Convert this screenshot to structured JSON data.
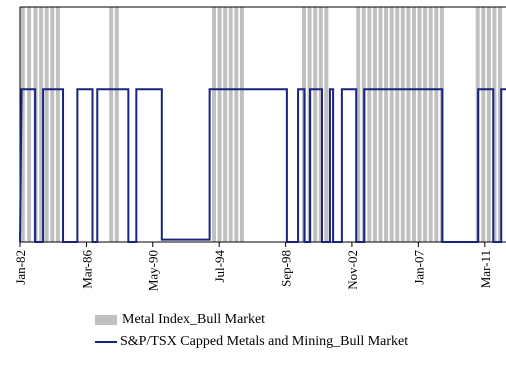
{
  "chart_data": {
    "type": "line",
    "xlabel": "",
    "ylabel": "",
    "x_tick_labels": [
      "Jan-82",
      "Mar-86",
      "May-90",
      "Jul-94",
      "Sep-98",
      "Nov-02",
      "Jan-07",
      "Mar-11"
    ],
    "x_tick_years": [
      1982.0,
      1986.17,
      1990.33,
      1994.5,
      1998.67,
      2002.83,
      2007.0,
      2011.17
    ],
    "xlim": [
      1982.0,
      2012.5
    ],
    "ylim": [
      0,
      1
    ],
    "grid": false,
    "legend_position": "bottom",
    "series": [
      {
        "name": "Metal Index_Bull Market",
        "kind": "shaded-bars",
        "color": "#c0c0c0",
        "value": 1,
        "bull_periods": [
          [
            1982.05,
            1982.3
          ],
          [
            1982.45,
            1982.7
          ],
          [
            1982.85,
            1983.1
          ],
          [
            1983.2,
            1983.45
          ],
          [
            1983.55,
            1983.8
          ],
          [
            1983.9,
            1984.15
          ],
          [
            1984.25,
            1984.5
          ],
          [
            1987.6,
            1987.85
          ],
          [
            1987.95,
            1988.2
          ],
          [
            1994.05,
            1994.3
          ],
          [
            1994.4,
            1994.65
          ],
          [
            1994.75,
            1995.0
          ],
          [
            1995.1,
            1995.35
          ],
          [
            1995.45,
            1995.7
          ],
          [
            1995.8,
            1996.05
          ],
          [
            1999.7,
            1999.95
          ],
          [
            2000.05,
            2000.3
          ],
          [
            2000.4,
            2000.65
          ],
          [
            2000.75,
            2001.0
          ],
          [
            2001.1,
            2001.35
          ],
          [
            2003.1,
            2003.35
          ],
          [
            2003.45,
            2003.7
          ],
          [
            2003.8,
            2004.05
          ],
          [
            2004.15,
            2004.4
          ],
          [
            2004.5,
            2004.75
          ],
          [
            2004.85,
            2005.1
          ],
          [
            2005.2,
            2005.45
          ],
          [
            2005.55,
            2005.8
          ],
          [
            2005.9,
            2006.15
          ],
          [
            2006.25,
            2006.5
          ],
          [
            2006.6,
            2006.85
          ],
          [
            2006.95,
            2007.2
          ],
          [
            2007.3,
            2007.55
          ],
          [
            2007.65,
            2007.9
          ],
          [
            2008.0,
            2008.25
          ],
          [
            2008.35,
            2008.6
          ],
          [
            2010.6,
            2010.85
          ],
          [
            2010.95,
            2011.2
          ],
          [
            2011.3,
            2011.55
          ],
          [
            2011.65,
            2011.9
          ],
          [
            2012.0,
            2012.25
          ]
        ]
      },
      {
        "name": "S&P/TSX Capped Metals and Mining_Bull Market",
        "kind": "step",
        "color": "#1a237e",
        "high": 0.65,
        "low": 0,
        "steps": [
          [
            1982.0,
            0
          ],
          [
            1982.1,
            0.65
          ],
          [
            1982.95,
            0.65
          ],
          [
            1982.95,
            0
          ],
          [
            1983.45,
            0
          ],
          [
            1983.45,
            0.65
          ],
          [
            1984.7,
            0.65
          ],
          [
            1984.7,
            0
          ],
          [
            1985.6,
            0
          ],
          [
            1985.6,
            0.65
          ],
          [
            1986.55,
            0.65
          ],
          [
            1986.55,
            0
          ],
          [
            1986.85,
            0
          ],
          [
            1986.85,
            0.65
          ],
          [
            1988.8,
            0.65
          ],
          [
            1988.8,
            0
          ],
          [
            1989.3,
            0
          ],
          [
            1989.3,
            0.65
          ],
          [
            1990.9,
            0.65
          ],
          [
            1990.9,
            0.01
          ],
          [
            1993.9,
            0.01
          ],
          [
            1993.9,
            0.65
          ],
          [
            1998.75,
            0.65
          ],
          [
            1998.75,
            0
          ],
          [
            1999.45,
            0
          ],
          [
            1999.45,
            0.65
          ],
          [
            1999.85,
            0.65
          ],
          [
            1999.85,
            0
          ],
          [
            2000.2,
            0
          ],
          [
            2000.2,
            0.65
          ],
          [
            2000.95,
            0.65
          ],
          [
            2000.95,
            0
          ],
          [
            2001.45,
            0
          ],
          [
            2001.45,
            0.65
          ],
          [
            2001.65,
            0.65
          ],
          [
            2001.65,
            0
          ],
          [
            2002.2,
            0
          ],
          [
            2002.2,
            0.65
          ],
          [
            2003.1,
            0.65
          ],
          [
            2003.1,
            0
          ],
          [
            2003.6,
            0
          ],
          [
            2003.6,
            0.65
          ],
          [
            2008.5,
            0.65
          ],
          [
            2008.5,
            0
          ],
          [
            2010.75,
            0
          ],
          [
            2010.75,
            0.65
          ],
          [
            2011.7,
            0.65
          ],
          [
            2011.7,
            0
          ],
          [
            2012.2,
            0
          ],
          [
            2012.2,
            0.65
          ],
          [
            2012.5,
            0.65
          ]
        ]
      }
    ]
  },
  "legend": {
    "bar_label": "Metal Index_Bull Market",
    "line_label": "S&P/TSX Capped Metals and Mining_Bull Market"
  }
}
